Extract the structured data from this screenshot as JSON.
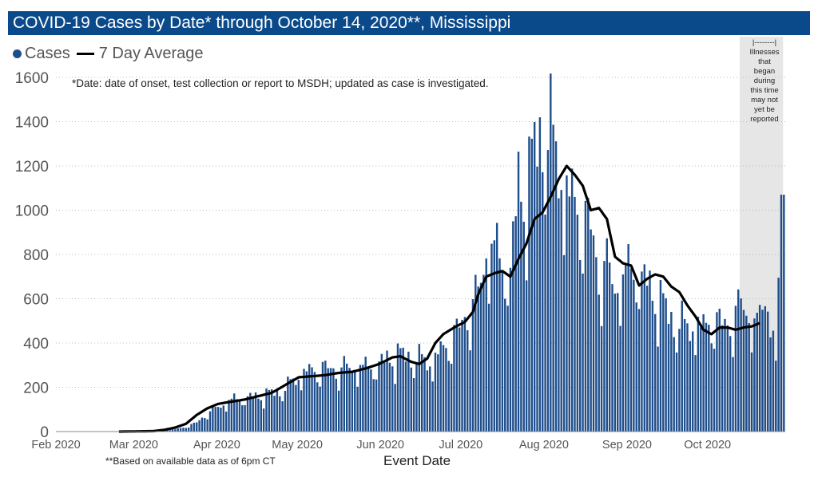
{
  "title": "COVID-19 Cases by Date* through October 14, 2020**, Mississippi",
  "legend": {
    "cases_label": "Cases",
    "avg_label": "7 Day Average"
  },
  "note": "*Date: date of onset, test collection or report to MSDH; updated as case is investigated.",
  "footnote": "**Based on available data as of 6pm CT",
  "shade_note": [
    "|--------|",
    "Illnesses",
    "that",
    "began",
    "during",
    "this time",
    "may not",
    "yet be",
    "reported"
  ],
  "colors": {
    "bar": "#1f4e8c",
    "avg": "#000000",
    "title_bg": "#0b4a8a",
    "shade": "#e6e6e6"
  },
  "chart_data": {
    "type": "bar",
    "title": "COVID-19 Cases by Date* through October 14, 2020**, Mississippi",
    "xlabel": "Event Date",
    "ylabel": "",
    "ylim": [
      0,
      1600
    ],
    "yticks": [
      0,
      200,
      400,
      600,
      800,
      1000,
      1200,
      1400,
      1600
    ],
    "xticks": [
      {
        "label": "Feb 2020",
        "month": 0
      },
      {
        "label": "Mar 2020",
        "month": 1
      },
      {
        "label": "Apr 2020",
        "month": 2
      },
      {
        "label": "May 2020",
        "month": 3
      },
      {
        "label": "Jun 2020",
        "month": 4
      },
      {
        "label": "Jul 2020",
        "month": 5
      },
      {
        "label": "Aug 2020",
        "month": 6
      },
      {
        "label": "Sep 2020",
        "month": 7
      },
      {
        "label": "Oct 2020",
        "month": 8
      }
    ],
    "shade_range_days": [
      255,
      270
    ],
    "grid": "horizontal dotted",
    "cases_anchors": [
      [
        0,
        1
      ],
      [
        5,
        1
      ],
      [
        12,
        1
      ],
      [
        20,
        0
      ],
      [
        30,
        1
      ],
      [
        38,
        5
      ],
      [
        44,
        10
      ],
      [
        48,
        20
      ],
      [
        52,
        40
      ],
      [
        56,
        80
      ],
      [
        60,
        110
      ],
      [
        65,
        140
      ],
      [
        70,
        150
      ],
      [
        75,
        155
      ],
      [
        80,
        170
      ],
      [
        85,
        190
      ],
      [
        90,
        250
      ],
      [
        95,
        270
      ],
      [
        100,
        280
      ],
      [
        105,
        270
      ],
      [
        110,
        290
      ],
      [
        115,
        280
      ],
      [
        120,
        300
      ],
      [
        125,
        330
      ],
      [
        130,
        340
      ],
      [
        135,
        320
      ],
      [
        140,
        310
      ],
      [
        145,
        380
      ],
      [
        150,
        460
      ],
      [
        154,
        540
      ],
      [
        157,
        600
      ],
      [
        160,
        820
      ],
      [
        163,
        800
      ],
      [
        166,
        750
      ],
      [
        169,
        700
      ],
      [
        172,
        1100
      ],
      [
        175,
        1050
      ],
      [
        178,
        1250
      ],
      [
        181,
        1350
      ],
      [
        184,
        1300
      ],
      [
        187,
        1200
      ],
      [
        190,
        1050
      ],
      [
        193,
        1000
      ],
      [
        196,
        950
      ],
      [
        199,
        900
      ],
      [
        202,
        700
      ],
      [
        205,
        720
      ],
      [
        208,
        650
      ],
      [
        211,
        680
      ],
      [
        214,
        720
      ],
      [
        217,
        700
      ],
      [
        220,
        650
      ],
      [
        223,
        600
      ],
      [
        226,
        560
      ],
      [
        229,
        500
      ],
      [
        232,
        480
      ],
      [
        235,
        460
      ],
      [
        238,
        480
      ],
      [
        241,
        450
      ],
      [
        244,
        500
      ],
      [
        247,
        480
      ],
      [
        250,
        470
      ],
      [
        253,
        520
      ],
      [
        256,
        560
      ],
      [
        259,
        500
      ],
      [
        262,
        480
      ],
      [
        265,
        650
      ],
      [
        268,
        320
      ],
      [
        270,
        1070
      ]
    ],
    "avg_anchors": [
      [
        23,
        0
      ],
      [
        30,
        1
      ],
      [
        36,
        2
      ],
      [
        40,
        8
      ],
      [
        44,
        18
      ],
      [
        48,
        35
      ],
      [
        52,
        75
      ],
      [
        56,
        105
      ],
      [
        60,
        125
      ],
      [
        65,
        135
      ],
      [
        70,
        145
      ],
      [
        75,
        160
      ],
      [
        80,
        175
      ],
      [
        85,
        210
      ],
      [
        90,
        245
      ],
      [
        95,
        250
      ],
      [
        100,
        255
      ],
      [
        105,
        265
      ],
      [
        110,
        270
      ],
      [
        115,
        285
      ],
      [
        120,
        305
      ],
      [
        125,
        335
      ],
      [
        128,
        340
      ],
      [
        132,
        315
      ],
      [
        135,
        305
      ],
      [
        138,
        330
      ],
      [
        141,
        400
      ],
      [
        144,
        440
      ],
      [
        148,
        470
      ],
      [
        152,
        495
      ],
      [
        155,
        540
      ],
      [
        157,
        620
      ],
      [
        160,
        700
      ],
      [
        163,
        715
      ],
      [
        166,
        725
      ],
      [
        169,
        700
      ],
      [
        172,
        780
      ],
      [
        175,
        850
      ],
      [
        178,
        960
      ],
      [
        181,
        990
      ],
      [
        184,
        1060
      ],
      [
        187,
        1140
      ],
      [
        190,
        1200
      ],
      [
        193,
        1160
      ],
      [
        196,
        1110
      ],
      [
        199,
        1000
      ],
      [
        202,
        1010
      ],
      [
        205,
        960
      ],
      [
        208,
        790
      ],
      [
        211,
        760
      ],
      [
        214,
        750
      ],
      [
        217,
        660
      ],
      [
        220,
        690
      ],
      [
        223,
        710
      ],
      [
        226,
        700
      ],
      [
        229,
        655
      ],
      [
        232,
        630
      ],
      [
        235,
        570
      ],
      [
        238,
        520
      ],
      [
        241,
        460
      ],
      [
        244,
        440
      ],
      [
        247,
        470
      ],
      [
        250,
        470
      ],
      [
        253,
        460
      ],
      [
        256,
        470
      ],
      [
        259,
        475
      ],
      [
        262,
        490
      ]
    ],
    "total_days": 272
  }
}
